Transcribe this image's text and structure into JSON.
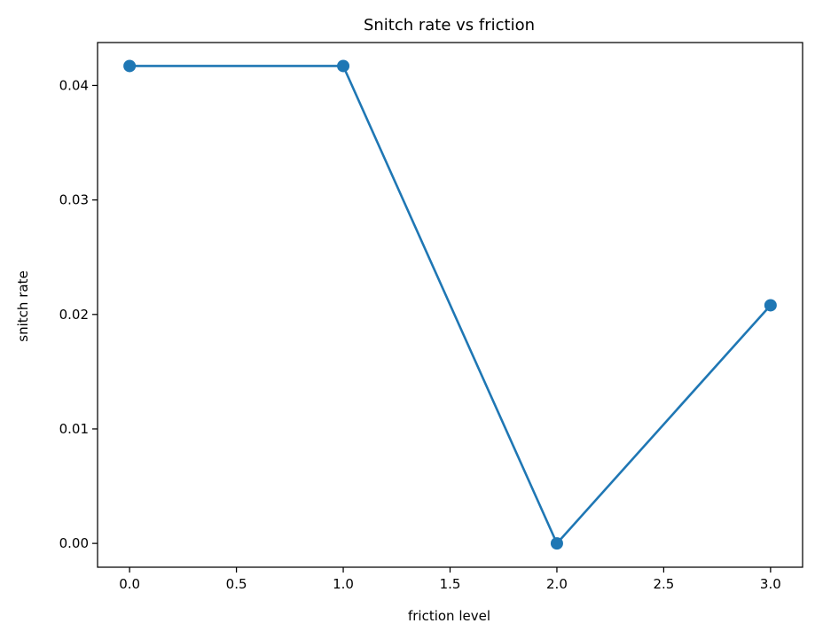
{
  "chart_data": {
    "type": "line",
    "title": "Snitch rate vs friction",
    "xlabel": "friction level",
    "ylabel": "snitch rate",
    "x": [
      0,
      1,
      2,
      3
    ],
    "series": [
      {
        "values": [
          0.0417,
          0.0417,
          0.0,
          0.0208
        ],
        "color": "#1f77b4",
        "marker": "circle"
      }
    ],
    "xlim": [
      -0.15,
      3.15
    ],
    "ylim": [
      -0.00208,
      0.04375
    ],
    "xticks": [
      0,
      0.5,
      1,
      1.5,
      2,
      2.5,
      3
    ],
    "xtick_labels": [
      "0.0",
      "0.5",
      "1.0",
      "1.5",
      "2.0",
      "2.5",
      "3.0"
    ],
    "yticks": [
      0,
      0.01,
      0.02,
      0.03,
      0.04
    ],
    "ytick_labels": [
      "0.00",
      "0.01",
      "0.02",
      "0.03",
      "0.04"
    ],
    "grid": false,
    "legend": "none"
  }
}
